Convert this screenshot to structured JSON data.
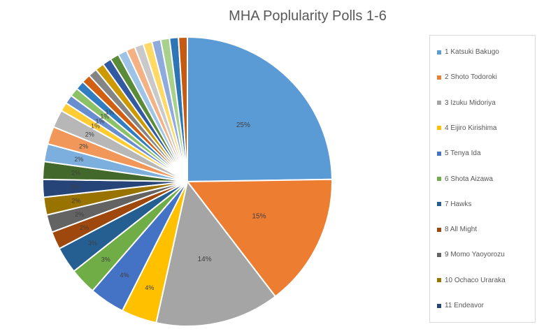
{
  "chart_data": {
    "type": "pie",
    "title": "MHA Poplularity Polls 1-6",
    "slices": [
      {
        "label": "1 Katsuki Bakugo",
        "value": 25,
        "color": "#5b9bd5"
      },
      {
        "label": "2 Shoto Todoroki",
        "value": 15,
        "color": "#ed7d31"
      },
      {
        "label": "3 Izuku Midoriya",
        "value": 14,
        "color": "#a5a5a5"
      },
      {
        "label": "4 Eijiro Kirishima",
        "value": 4,
        "color": "#ffc000"
      },
      {
        "label": "5 Tenya Ida",
        "value": 4,
        "color": "#4472c4"
      },
      {
        "label": "6 Shota Aizawa",
        "value": 3,
        "color": "#70ad47"
      },
      {
        "label": "7 Hawks",
        "value": 3,
        "color": "#255e91"
      },
      {
        "label": "8 All Might",
        "value": 2,
        "color": "#9e480e"
      },
      {
        "label": "9 Momo Yaoyorozu",
        "value": 2,
        "color": "#636363"
      },
      {
        "label": "10 Ochaco Uraraka",
        "value": 2,
        "color": "#997300"
      },
      {
        "label": "11 Endeavor",
        "value": 2,
        "color": "#264478"
      },
      {
        "label": "",
        "value": 2,
        "color": "#43682b"
      },
      {
        "label": "",
        "value": 2,
        "color": "#7cafdd"
      },
      {
        "label": "",
        "value": 2,
        "color": "#f1975a"
      },
      {
        "label": "",
        "value": 2,
        "color": "#b7b7b7"
      },
      {
        "label": "",
        "value": 1,
        "color": "#ffcd33"
      },
      {
        "label": "",
        "value": 1,
        "color": "#698ed0"
      },
      {
        "label": "",
        "value": 1,
        "color": "#8cc168"
      },
      {
        "label": "",
        "value": 1,
        "color": "#327dc2"
      },
      {
        "label": "",
        "value": 1,
        "color": "#d26012"
      },
      {
        "label": "",
        "value": 1,
        "color": "#848484"
      },
      {
        "label": "",
        "value": 1,
        "color": "#cc9a00"
      },
      {
        "label": "",
        "value": 1,
        "color": "#335aa1"
      },
      {
        "label": "",
        "value": 1,
        "color": "#5a8b39"
      },
      {
        "label": "",
        "value": 1,
        "color": "#9dc3e6"
      },
      {
        "label": "",
        "value": 1,
        "color": "#f4b183"
      },
      {
        "label": "",
        "value": 1,
        "color": "#c9c9c9"
      },
      {
        "label": "",
        "value": 1,
        "color": "#ffd966"
      },
      {
        "label": "",
        "value": 1,
        "color": "#8faadc"
      },
      {
        "label": "",
        "value": 1,
        "color": "#a9d18e"
      },
      {
        "label": "",
        "value": 1,
        "color": "#2e75b6"
      },
      {
        "label": "",
        "value": 1,
        "color": "#c55a11"
      }
    ],
    "data_labels": [
      "25%",
      "15%",
      "14%",
      "4%",
      "4%",
      "3%",
      "3%",
      "2%",
      "2%",
      "2%",
      "2%",
      "2%",
      "2%",
      "2%",
      "2%",
      "1%",
      "1%",
      "1%",
      "1%"
    ],
    "legend_position": "right"
  }
}
